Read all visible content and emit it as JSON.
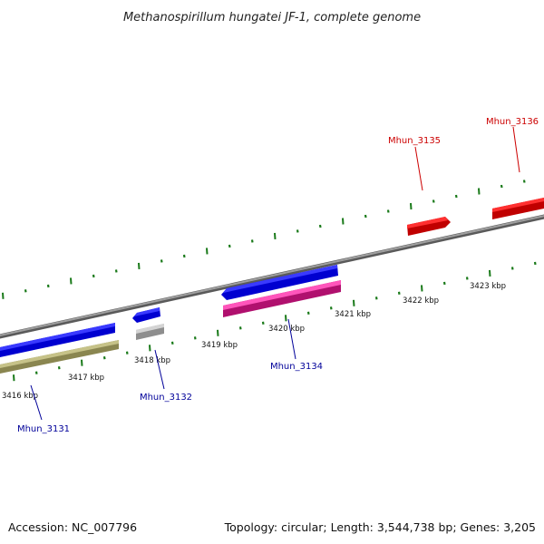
{
  "title": "Methanospirillum hungatei JF-1, complete genome",
  "footer": {
    "accession": "Accession: NC_007796",
    "summary": "Topology: circular; Length: 3,544,738 bp; Genes: 3,205"
  },
  "colors": {
    "backbone": "#808080",
    "tick": "#1a7a1a",
    "dot": "#1a7a1a",
    "forward_label": "#cc0000",
    "reverse_label": "#000099"
  },
  "kbp_ticks": [
    {
      "label": "3416 kbp"
    },
    {
      "label": "3417 kbp"
    },
    {
      "label": "3418 kbp"
    },
    {
      "label": "3419 kbp"
    },
    {
      "label": "3420 kbp"
    },
    {
      "label": "3421 kbp"
    },
    {
      "label": "3422 kbp"
    },
    {
      "label": "3423 kbp"
    }
  ],
  "genes": [
    {
      "name": "Mhun_3131",
      "color": "#0000ee",
      "label_color": "#000099"
    },
    {
      "name": "Mhun_3132",
      "color": "#0000ee",
      "label_color": "#000099"
    },
    {
      "name": "Mhun_3134",
      "color": "#0000ee",
      "label_color": "#000099"
    },
    {
      "name": "Mhun_3135",
      "color": "#ee0000",
      "label_color": "#cc0000"
    },
    {
      "name": "Mhun_3136",
      "color": "#ee0000",
      "label_color": "#cc0000"
    }
  ],
  "features": [
    {
      "name": "olive-feature",
      "color": "#b8b46c"
    },
    {
      "name": "grey-feature",
      "color": "#b8b8b8"
    },
    {
      "name": "pink-feature",
      "color": "#ee2299"
    }
  ]
}
